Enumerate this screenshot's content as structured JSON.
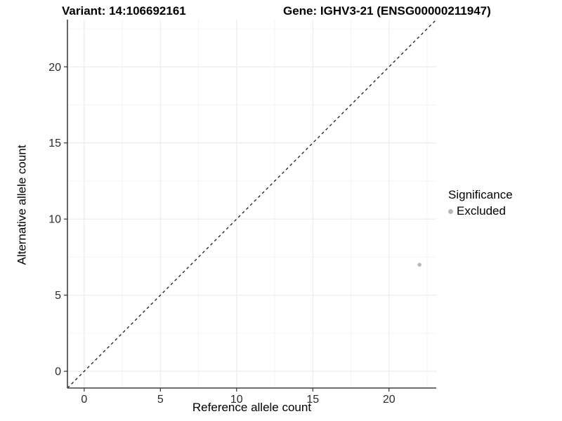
{
  "titles": {
    "variant": "Variant: 14:106692161",
    "gene": "Gene: IGHV3-21 (ENSG00000211947)"
  },
  "chart_data": {
    "type": "scatter",
    "title": "Variant: 14:106692161    Gene: IGHV3-21 (ENSG00000211947)",
    "xlabel": "Reference allele count",
    "ylabel": "Alternative allele count",
    "xlim": [
      -1.1,
      23.1
    ],
    "ylim": [
      -1.1,
      23.1
    ],
    "x_ticks": [
      0,
      5,
      10,
      15,
      20
    ],
    "y_ticks": [
      0,
      5,
      10,
      15,
      20
    ],
    "x_minor": [
      2.5,
      7.5,
      12.5,
      17.5,
      22.5
    ],
    "y_minor": [
      2.5,
      7.5,
      12.5,
      17.5,
      22.5
    ],
    "grid": true,
    "series": [
      {
        "name": "Excluded",
        "color": "#b8b8b8",
        "points": [
          {
            "x": 22,
            "y": 7
          }
        ]
      }
    ],
    "reference_line": {
      "style": "dashed",
      "color": "#1a1a1a",
      "from": [
        -1.1,
        -1.1
      ],
      "to": [
        23.1,
        23.1
      ]
    },
    "legend": {
      "title": "Significance",
      "position": "right",
      "entries": [
        {
          "label": "Excluded",
          "color": "#b8b8b8"
        }
      ]
    },
    "colors": {
      "grid_major": "#ebebeb",
      "grid_minor": "#f4f4f4",
      "axis_line": "#3f3f3f",
      "tick_mark": "#333333",
      "tick_label": "#2b2b2b",
      "point": "#b8b8b8"
    }
  }
}
